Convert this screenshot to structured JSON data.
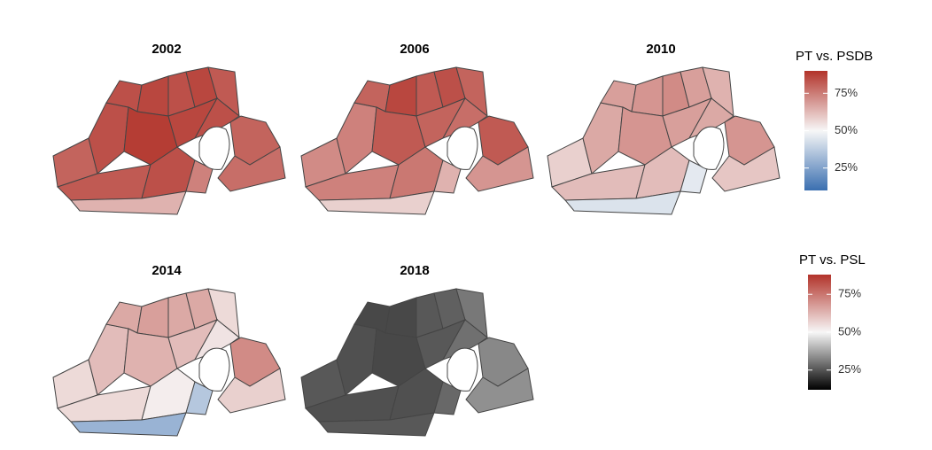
{
  "panels": [
    {
      "title": "2002"
    },
    {
      "title": "2006"
    },
    {
      "title": "2010"
    },
    {
      "title": "2014"
    },
    {
      "title": "2018"
    }
  ],
  "legends": [
    {
      "title": "PT vs. PSDB",
      "lim": [
        10,
        90
      ],
      "ticks": [
        {
          "value": 25,
          "label": "25%"
        },
        {
          "value": 50,
          "label": "50%"
        },
        {
          "value": 75,
          "label": "75%"
        }
      ]
    },
    {
      "title": "PT vs. PSL",
      "lim": [
        12,
        88
      ],
      "ticks": [
        {
          "value": 25,
          "label": "25%"
        },
        {
          "value": 50,
          "label": "50%"
        },
        {
          "value": 75,
          "label": "75%"
        }
      ]
    }
  ]
}
